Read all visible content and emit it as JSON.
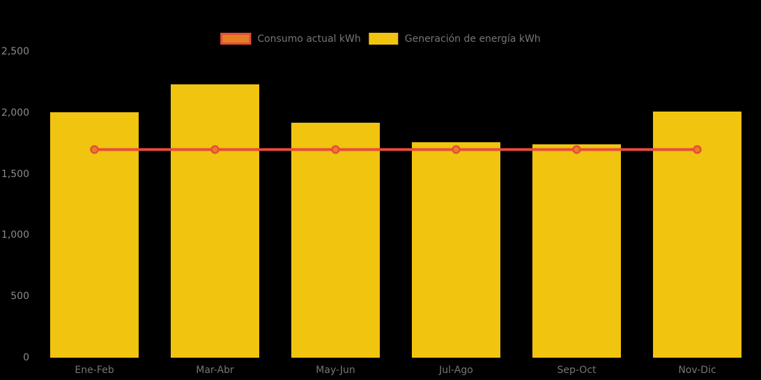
{
  "background_color": "#000000",
  "accent_colors": {
    "bar_yellow": "#F1C40F",
    "line_red": "#E74C3C",
    "marker_orange": "#E67E22",
    "text_gray": "#767676"
  },
  "legend": {
    "items": [
      {
        "label": "Consumo actual kWh",
        "series_type": "line",
        "swatch_fill": "#E67E22",
        "swatch_border": "#E74C3C"
      },
      {
        "label": "Generación de energía kWh",
        "series_type": "bar",
        "swatch_fill": "#F1C40F",
        "swatch_border": "#F1C40F"
      }
    ]
  },
  "chart_data": {
    "type": "bar",
    "title": "",
    "xlabel": "",
    "ylabel": "",
    "categories": [
      "Ene-Feb",
      "Mar-Abr",
      "May-Jun",
      "Jul-Ago",
      "Sep-Oct",
      "Nov-Dic"
    ],
    "series": [
      {
        "name": "Generación de energía kWh",
        "type": "bar",
        "color": "#F1C40F",
        "values": [
          2005,
          2235,
          1920,
          1760,
          1745,
          2010
        ]
      },
      {
        "name": "Consumo actual kWh",
        "type": "line",
        "color": "#E74C3C",
        "marker_fill": "#E67E22",
        "values": [
          1700,
          1700,
          1700,
          1700,
          1700,
          1700
        ]
      }
    ],
    "ylim": [
      0,
      2500
    ],
    "yticks": [
      0,
      500,
      1000,
      1500,
      2000,
      2500
    ],
    "ytick_labels": [
      "0",
      "500",
      "1,000",
      "1,500",
      "2,000",
      "2,500"
    ],
    "grid": false,
    "legend_position": "top-center"
  }
}
